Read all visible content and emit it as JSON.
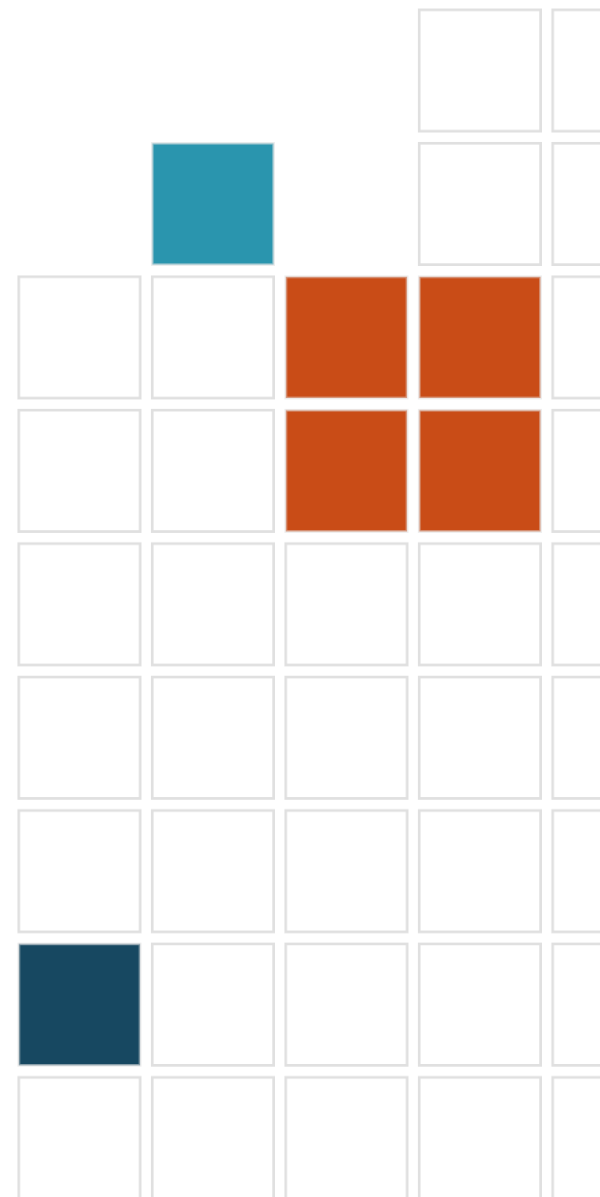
{
  "board": {
    "outline": "#e0e0e0",
    "rows": [
      [
        null,
        null,
        null,
        "#ffffff",
        "#ffffff"
      ],
      [
        null,
        "#2a95ae",
        null,
        "#ffffff",
        "#ffffff"
      ],
      [
        "#ffffff",
        "#ffffff",
        "#c94c17",
        "#c94c17",
        "#ffffff"
      ],
      [
        "#ffffff",
        "#ffffff",
        "#c94c17",
        "#c94c17",
        "#ffffff"
      ],
      [
        "#ffffff",
        "#ffffff",
        "#ffffff",
        "#ffffff",
        "#ffffff"
      ],
      [
        "#ffffff",
        "#ffffff",
        "#ffffff",
        "#ffffff",
        "#ffffff"
      ],
      [
        "#ffffff",
        "#ffffff",
        "#ffffff",
        "#ffffff",
        "#ffffff"
      ],
      [
        "#174861",
        "#ffffff",
        "#ffffff",
        "#ffffff",
        "#ffffff"
      ],
      [
        "#ffffff",
        "#ffffff",
        "#ffffff",
        "#ffffff",
        "#ffffff"
      ]
    ]
  }
}
